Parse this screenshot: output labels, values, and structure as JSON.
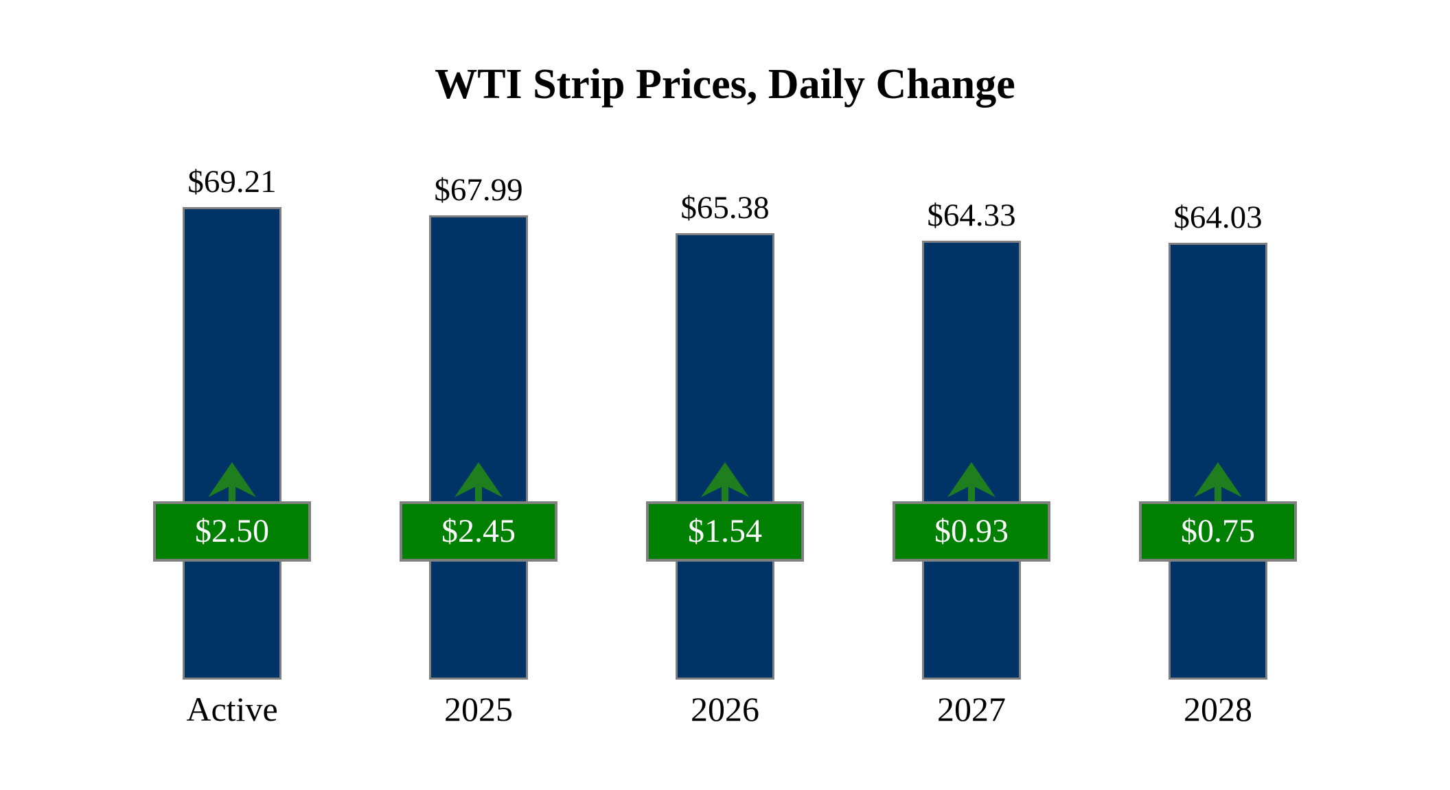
{
  "chart_data": {
    "type": "bar",
    "title": "WTI Strip Prices, Daily Change",
    "categories": [
      "Active",
      "2025",
      "2026",
      "2027",
      "2028"
    ],
    "values": [
      69.21,
      67.99,
      65.38,
      64.33,
      64.03
    ],
    "daily_changes": [
      2.5,
      2.45,
      1.54,
      0.93,
      0.75
    ],
    "change_direction": "up",
    "xlabel": "",
    "ylabel": "",
    "ylim": [
      0,
      69.21
    ],
    "grid": false,
    "legend_position": "none",
    "points": [
      {
        "category": "Active",
        "price": 69.21,
        "price_label": "$69.21",
        "daily_change": 2.5,
        "change_label": "$2.50",
        "direction": "up"
      },
      {
        "category": "2025",
        "price": 67.99,
        "price_label": "$67.99",
        "daily_change": 2.45,
        "change_label": "$2.45",
        "direction": "up"
      },
      {
        "category": "2026",
        "price": 65.38,
        "price_label": "$65.38",
        "daily_change": 1.54,
        "change_label": "$1.54",
        "direction": "up"
      },
      {
        "category": "2027",
        "price": 64.33,
        "price_label": "$64.33",
        "daily_change": 0.93,
        "change_label": "$0.93",
        "direction": "up"
      },
      {
        "category": "2028",
        "price": 64.03,
        "price_label": "$64.03",
        "daily_change": 0.75,
        "change_label": "$0.75",
        "direction": "up"
      }
    ]
  },
  "colors": {
    "bar": "#003366",
    "badge": "#008000",
    "arrow": "#1f7f1f",
    "border": "#808080",
    "text": "#000000",
    "badge_text": "#ffffff",
    "background": "#ffffff"
  }
}
